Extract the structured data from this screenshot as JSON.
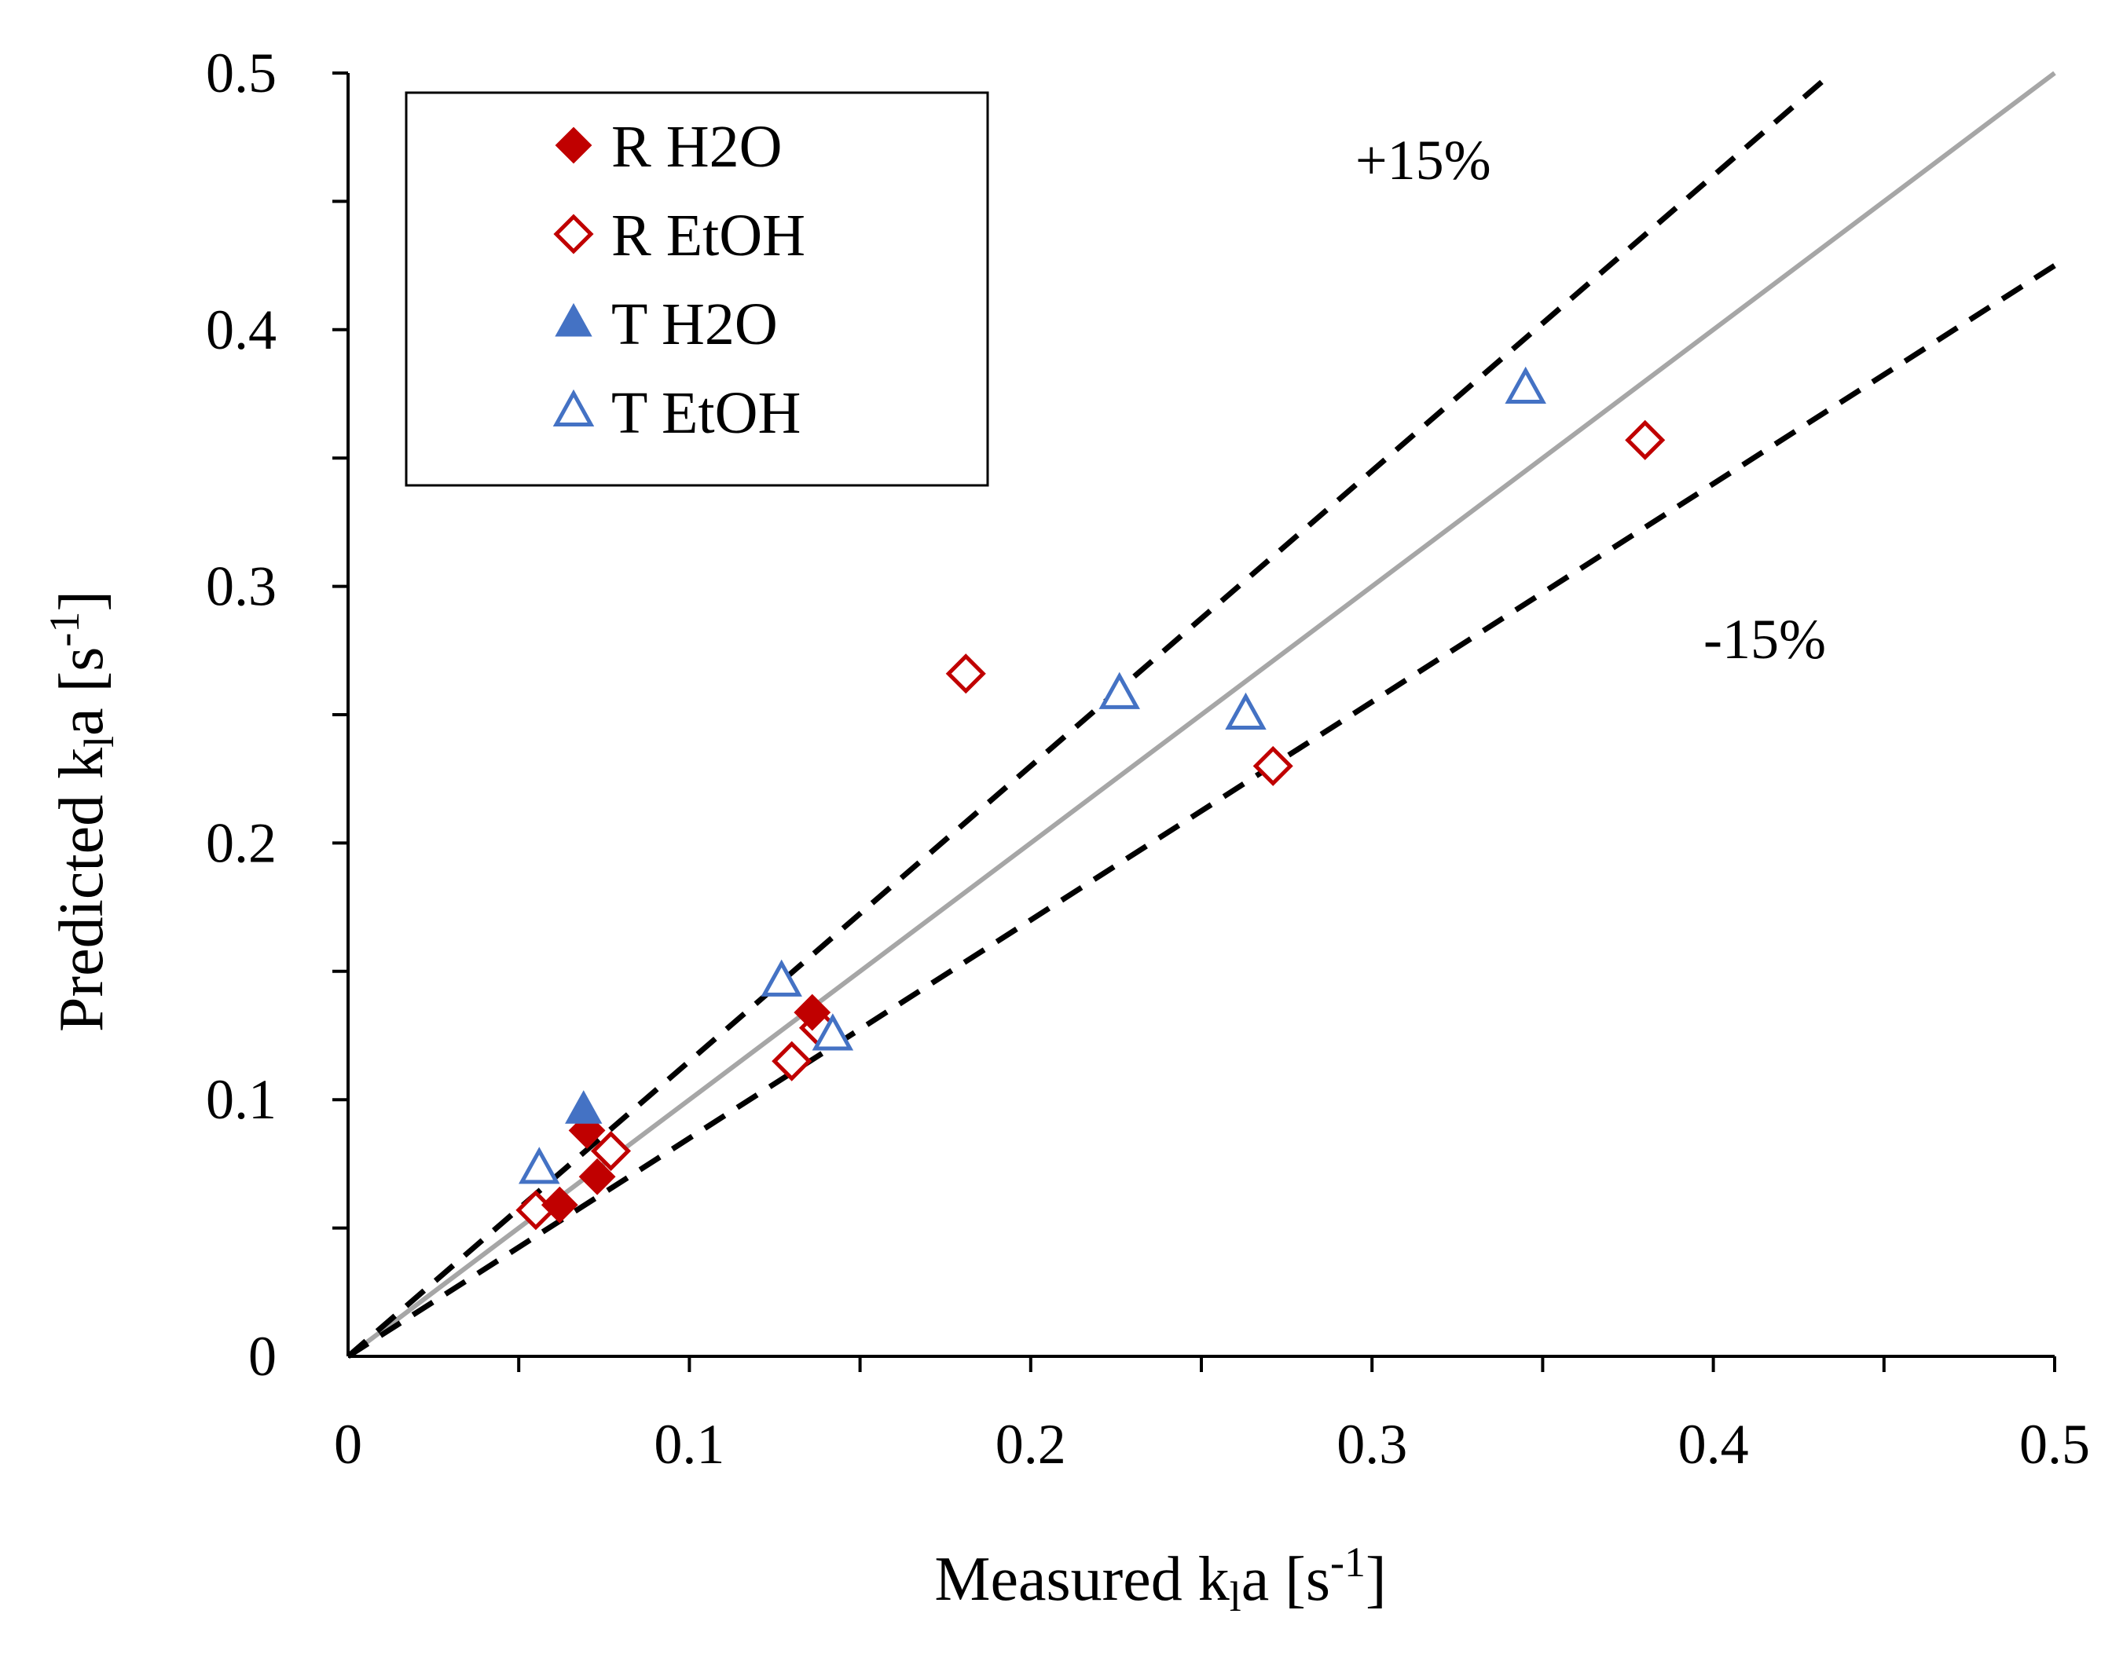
{
  "chart_data": {
    "type": "scatter",
    "title": "",
    "xlabel": {
      "pre": "Measured k",
      "sub": "l",
      "mid": "a [s",
      "sup": "-1",
      "post": "]"
    },
    "ylabel": {
      "pre": "Predicted k",
      "sub": "l",
      "mid": "a [s",
      "sup": "-1",
      "post": "]"
    },
    "xlim": [
      0,
      0.5
    ],
    "ylim": [
      0,
      0.5
    ],
    "x_tick_labels": [
      "0",
      "0.1",
      "0.2",
      "0.3",
      "0.4",
      "0.5"
    ],
    "y_tick_labels": [
      "0",
      "0.1",
      "0.2",
      "0.3",
      "0.4",
      "0.5"
    ],
    "major_ticks": [
      0,
      0.1,
      0.2,
      0.3,
      0.4,
      0.5
    ],
    "minor_ticks": [
      0.05,
      0.15,
      0.25,
      0.35,
      0.45
    ],
    "grid": false,
    "legend_position": "top-left",
    "series": [
      {
        "name": "R H2O",
        "marker": "diamond",
        "filled": true,
        "color": "#C00000",
        "points": [
          [
            0.062,
            0.059
          ],
          [
            0.07,
            0.088
          ],
          [
            0.073,
            0.07
          ],
          [
            0.136,
            0.134
          ]
        ]
      },
      {
        "name": "R EtOH",
        "marker": "diamond",
        "filled": false,
        "color": "#C00000",
        "points": [
          [
            0.055,
            0.057
          ],
          [
            0.077,
            0.08
          ],
          [
            0.13,
            0.115
          ],
          [
            0.138,
            0.128
          ],
          [
            0.181,
            0.266
          ],
          [
            0.271,
            0.23
          ],
          [
            0.38,
            0.357
          ]
        ]
      },
      {
        "name": "T H2O",
        "marker": "triangle",
        "filled": true,
        "color": "#4472C4",
        "points": [
          [
            0.069,
            0.096
          ]
        ]
      },
      {
        "name": "T EtOH",
        "marker": "triangle",
        "filled": false,
        "color": "#4472C4",
        "points": [
          [
            0.056,
            0.073
          ],
          [
            0.127,
            0.146
          ],
          [
            0.142,
            0.125
          ],
          [
            0.226,
            0.258
          ],
          [
            0.263,
            0.25
          ],
          [
            0.345,
            0.377
          ]
        ]
      }
    ],
    "reference_lines": [
      {
        "name": "parity",
        "slope": 1.0,
        "style": "solid",
        "color": "#A6A6A6",
        "x_end": 0.5
      },
      {
        "name": "plus-15",
        "slope": 1.15,
        "style": "dashed",
        "color": "#000000",
        "x_end": 0.435
      },
      {
        "name": "minus-15",
        "slope": 0.85,
        "style": "dashed",
        "color": "#000000",
        "x_end": 0.5
      }
    ],
    "annotations": {
      "plus": "+15%",
      "minus": "-15%"
    }
  }
}
